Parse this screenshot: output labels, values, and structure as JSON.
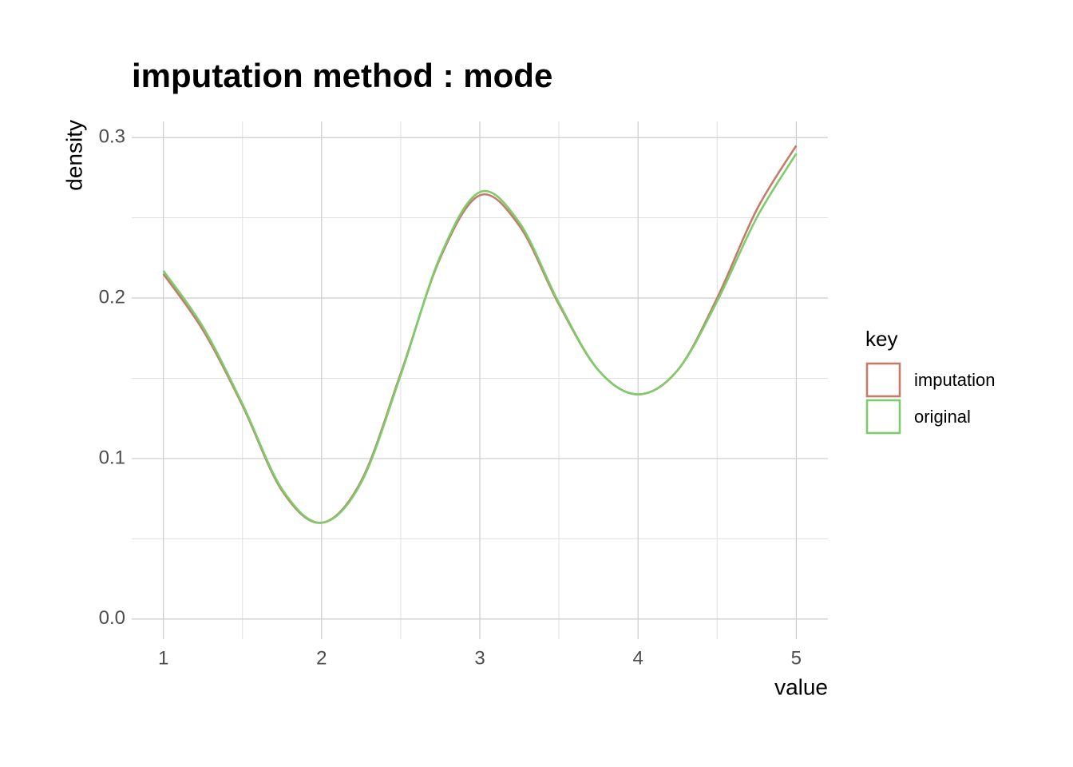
{
  "chart_data": {
    "type": "line",
    "title": "imputation method : mode",
    "x_label": "value",
    "y_label": "density",
    "x": [
      1,
      1.25,
      1.5,
      1.75,
      2,
      2.25,
      2.5,
      2.75,
      3,
      3.25,
      3.5,
      3.75,
      4,
      4.25,
      4.5,
      4.75,
      5
    ],
    "series": [
      {
        "name": "imputation",
        "color": "#c67b6a",
        "values": [
          0.215,
          0.18,
          0.133,
          0.08,
          0.06,
          0.086,
          0.153,
          0.225,
          0.264,
          0.245,
          0.196,
          0.155,
          0.14,
          0.155,
          0.2,
          0.255,
          0.295
        ]
      },
      {
        "name": "original",
        "color": "#7dcc6a",
        "values": [
          0.217,
          0.182,
          0.134,
          0.081,
          0.06,
          0.085,
          0.152,
          0.226,
          0.266,
          0.247,
          0.197,
          0.155,
          0.14,
          0.155,
          0.198,
          0.25,
          0.29
        ]
      }
    ],
    "xlim": [
      0.8,
      5.2
    ],
    "ylim": [
      -0.0125,
      0.31
    ],
    "xticks": [
      1,
      2,
      3,
      4,
      5
    ],
    "yticks": [
      {
        "value": 0,
        "label": "0.0"
      },
      0.1,
      0.2,
      0.3
    ],
    "minor_xticks": [
      1.5,
      2.5,
      3.5,
      4.5
    ],
    "minor_yticks": [
      0.05,
      0.15,
      0.25
    ],
    "grid": true,
    "legend_title": "key",
    "legend_position": "right"
  }
}
